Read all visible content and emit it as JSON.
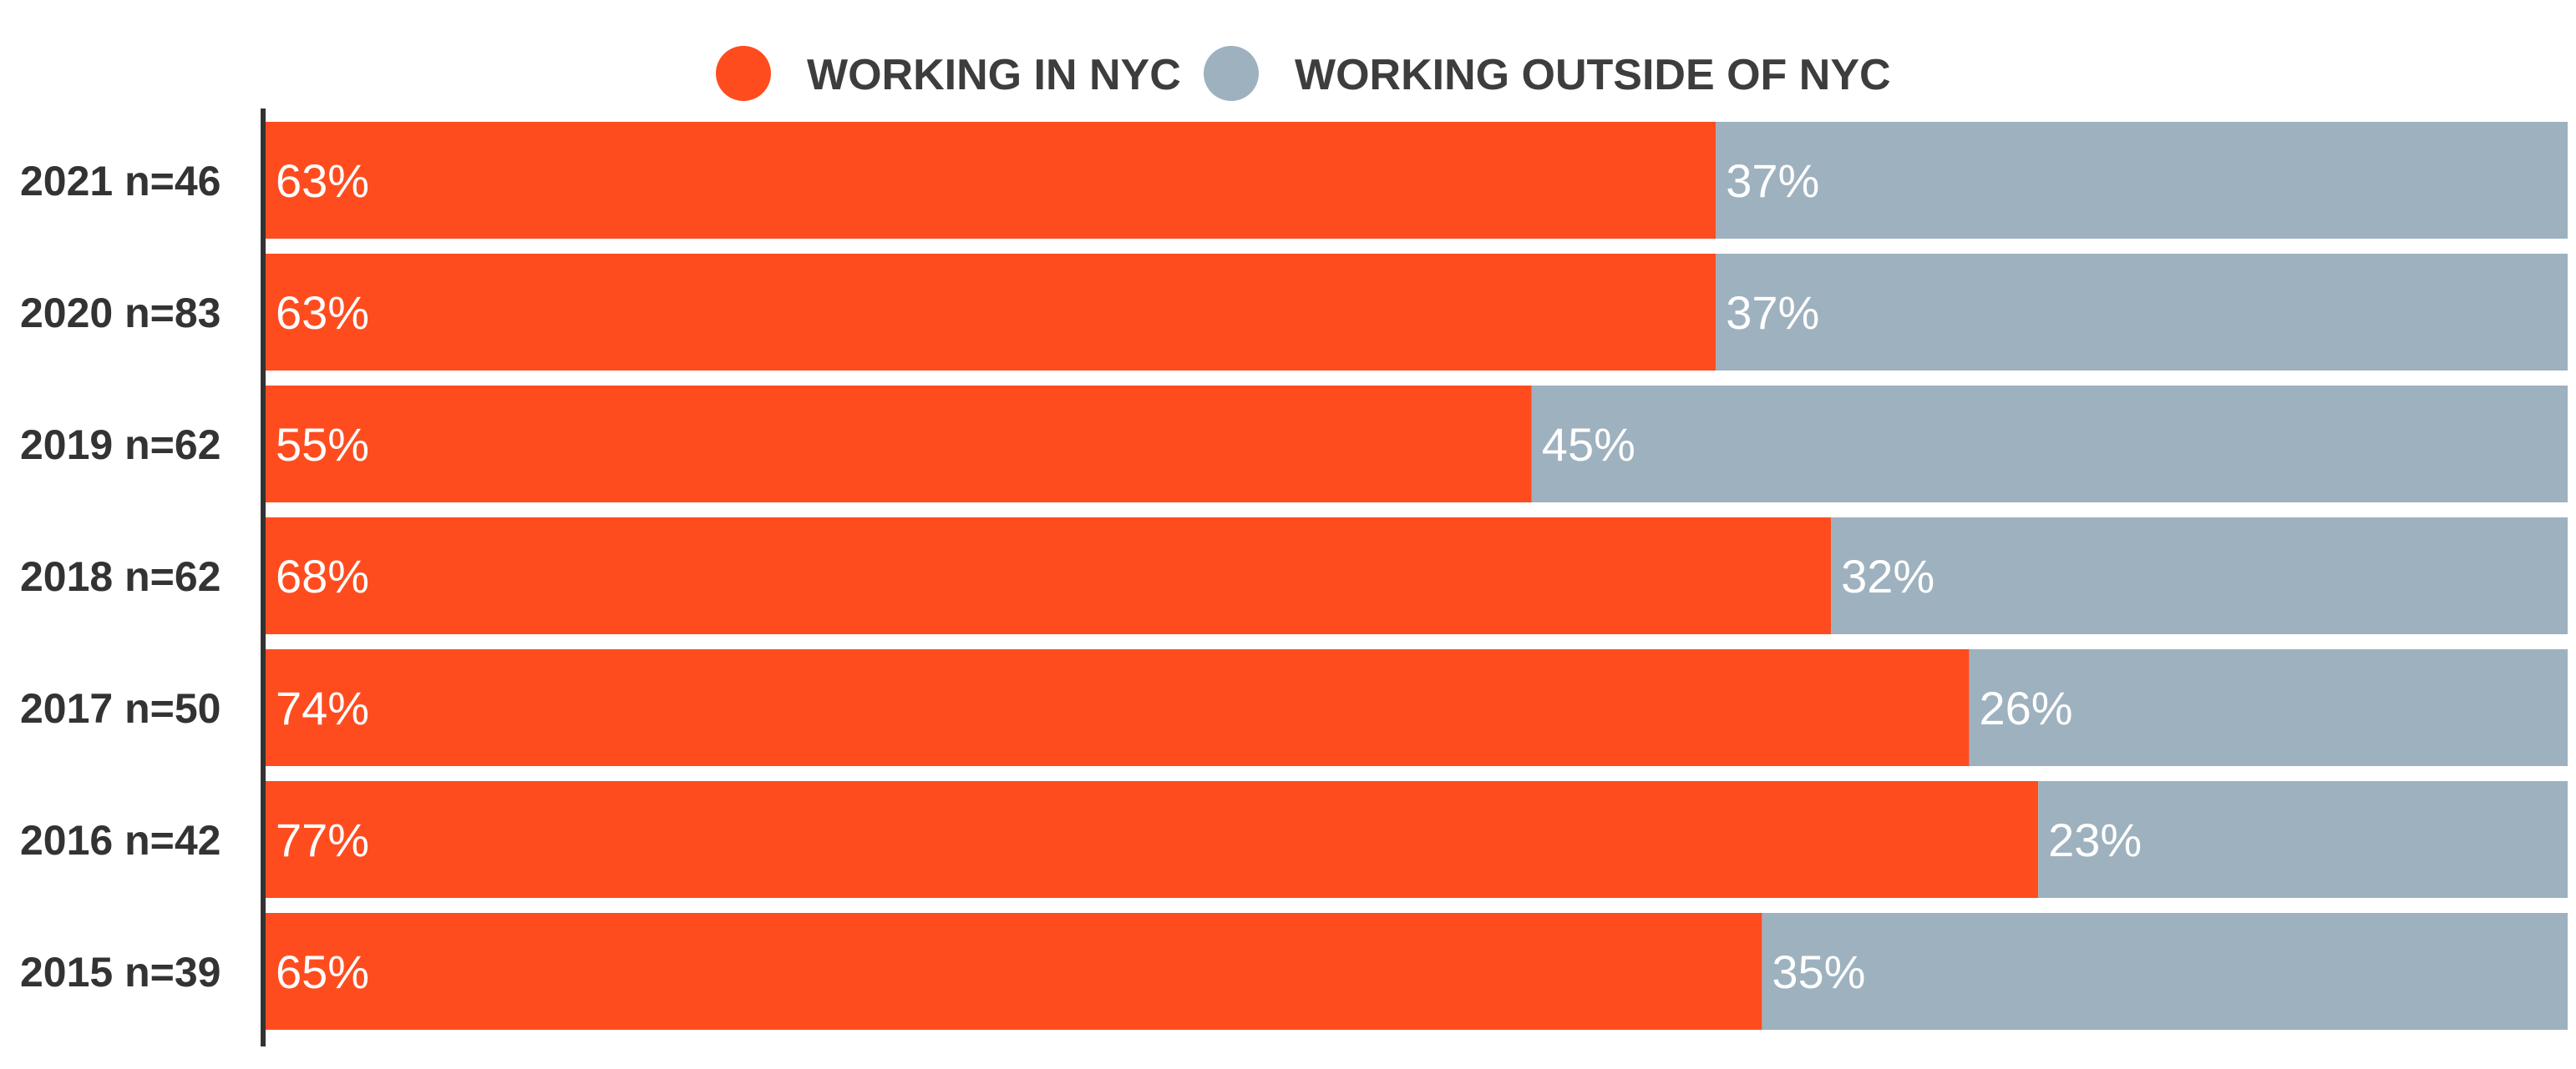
{
  "chart_data": {
    "type": "bar",
    "orientation": "horizontal",
    "stacked": true,
    "percent": true,
    "categories": [
      "2021 n=46",
      "2020 n=83",
      "2019 n=62",
      "2018 n=62",
      "2017 n=50",
      "2016 n=42",
      "2015 n=39"
    ],
    "series": [
      {
        "name": "WORKING IN NYC",
        "color": "#ff4c1f",
        "values": [
          63,
          63,
          55,
          68,
          74,
          77,
          65
        ],
        "labels": [
          "63%",
          "63%",
          "55%",
          "68%",
          "74%",
          "77%",
          "65%"
        ]
      },
      {
        "name": "WORKING OUTSIDE OF NYC",
        "color": "#9eb1bf",
        "values": [
          37,
          37,
          45,
          32,
          26,
          23,
          35
        ],
        "labels": [
          "37%",
          "37%",
          "45%",
          "32%",
          "26%",
          "23%",
          "35%"
        ]
      }
    ],
    "xlim": [
      0,
      100
    ],
    "legend": {
      "position": "top-center"
    },
    "grid": false,
    "axis_color": "#333333"
  }
}
